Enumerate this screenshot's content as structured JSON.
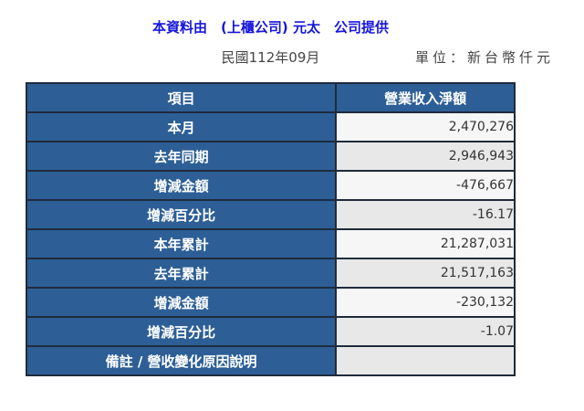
{
  "page": {
    "title": "本資料由　(上櫃公司) 元太　公司提供",
    "period": "民國112年09月",
    "unit": "單位：新台幣仟元"
  },
  "table": {
    "columns": [
      "項目",
      "營業收入淨額"
    ],
    "rows": [
      {
        "label": "本月",
        "value": "2,470,276"
      },
      {
        "label": "去年同期",
        "value": "2,946,943"
      },
      {
        "label": "增減金額",
        "value": "-476,667"
      },
      {
        "label": "增減百分比",
        "value": "-16.17"
      },
      {
        "label": "本年累計",
        "value": "21,287,031"
      },
      {
        "label": "去年累計",
        "value": "21,517,163"
      },
      {
        "label": "增減金額",
        "value": "-230,132"
      },
      {
        "label": "增減百分比",
        "value": "-1.07"
      },
      {
        "label": "備註 / 營收變化原因說明",
        "value": ""
      }
    ]
  },
  "colors": {
    "title_blue": "#1616DD",
    "cell_blue": "#2D5F96",
    "border": "#1F2B3C",
    "row_light": "#F6F6F6",
    "row_shaded": "#E8E8E8",
    "meta_text": "#444444",
    "value_text": "#333333"
  }
}
